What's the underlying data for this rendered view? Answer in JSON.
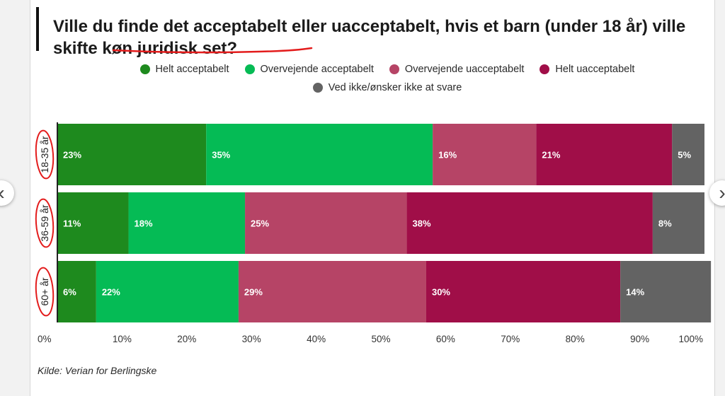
{
  "title": "Ville du finde det acceptabelt eller uacceptabelt, hvis et barn (under 18 år) ville skifte køn juridisk set?",
  "source": "Kilde: Verian for Berlingske",
  "nav": {
    "prev_icon": "‹",
    "next_icon": "›"
  },
  "colors": {
    "helt_acceptabelt": "#1e8a1e",
    "overvejende_acceptabelt": "#05bb55",
    "overvejende_uacceptabelt": "#b64466",
    "helt_uacceptabelt": "#a00e48",
    "ved_ikke": "#636363",
    "annotation": "#e31c1c"
  },
  "chart_data": {
    "type": "bar",
    "orientation": "horizontal",
    "stacked": true,
    "categories": [
      "18-35 år",
      "36-59 år",
      "60+ år"
    ],
    "series": [
      {
        "name": "Helt acceptabelt",
        "values": [
          23,
          11,
          6
        ]
      },
      {
        "name": "Overvejende acceptabelt",
        "values": [
          35,
          18,
          22
        ]
      },
      {
        "name": "Overvejende uacceptabelt",
        "values": [
          16,
          25,
          29
        ]
      },
      {
        "name": "Helt uacceptabelt",
        "values": [
          21,
          38,
          30
        ]
      },
      {
        "name": "Ved ikke/ønsker ikke at svare",
        "values": [
          5,
          8,
          14
        ]
      }
    ],
    "xlim": [
      0,
      100
    ],
    "xticks": [
      "0%",
      "10%",
      "20%",
      "30%",
      "40%",
      "50%",
      "60%",
      "70%",
      "80%",
      "90%",
      "100%"
    ],
    "legend_position": "top",
    "grid": false
  }
}
